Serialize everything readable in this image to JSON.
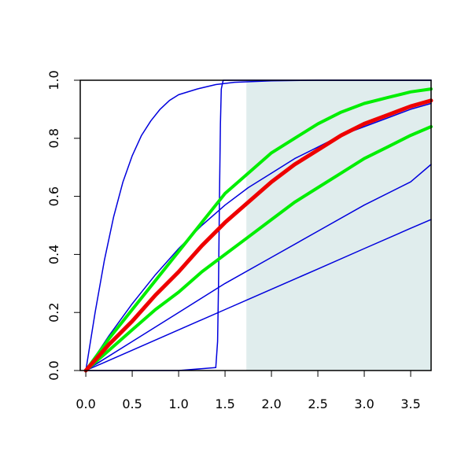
{
  "chart_data": {
    "type": "line",
    "title": "",
    "xlabel": "",
    "ylabel": "",
    "xlim": [
      -0.06,
      3.72
    ],
    "ylim": [
      0,
      1
    ],
    "grid": false,
    "x_ticks": [
      "0.0",
      "0.5",
      "1.0",
      "1.5",
      "2.0",
      "2.5",
      "3.0",
      "3.5"
    ],
    "y_ticks": [
      "0.0",
      "0.2",
      "0.4",
      "0.6",
      "0.8",
      "1.0"
    ],
    "shaded_region": {
      "x_from": 1.73,
      "x_to": 3.72,
      "color": "#e0eded"
    },
    "series": [
      {
        "color": "#0000dd",
        "width": 1.5,
        "x": [
          0,
          0.1,
          0.2,
          0.3,
          0.4,
          0.5,
          0.6,
          0.7,
          0.8,
          0.9,
          1.0,
          1.2,
          1.4,
          1.6,
          2.0,
          2.5,
          3.0,
          3.72
        ],
        "y": [
          0,
          0.2,
          0.38,
          0.53,
          0.65,
          0.74,
          0.81,
          0.86,
          0.9,
          0.93,
          0.95,
          0.97,
          0.985,
          0.993,
          0.998,
          1.0,
          1.0,
          1.0
        ]
      },
      {
        "color": "#0000dd",
        "width": 1.5,
        "x": [
          0,
          1.0,
          1.4,
          1.42,
          1.43,
          1.44,
          1.45,
          1.46,
          1.48,
          1.6,
          2.0,
          3.72
        ],
        "y": [
          0,
          0,
          0.01,
          0.1,
          0.3,
          0.6,
          0.85,
          0.97,
          1.0,
          1.0,
          1.0,
          1.0
        ]
      },
      {
        "color": "#0000dd",
        "width": 1.5,
        "x": [
          0,
          0.25,
          0.5,
          0.75,
          1.0,
          1.25,
          1.5,
          1.75,
          2.0,
          2.25,
          2.5,
          2.75,
          3.0,
          3.25,
          3.5,
          3.72
        ],
        "y": [
          0,
          0.12,
          0.23,
          0.33,
          0.42,
          0.5,
          0.57,
          0.63,
          0.68,
          0.73,
          0.77,
          0.81,
          0.84,
          0.87,
          0.9,
          0.92
        ]
      },
      {
        "color": "#0000dd",
        "width": 1.5,
        "x": [
          0,
          0.5,
          1.0,
          1.5,
          2.0,
          2.5,
          3.0,
          3.5,
          3.72
        ],
        "y": [
          0,
          0.1,
          0.2,
          0.3,
          0.39,
          0.48,
          0.57,
          0.65,
          0.71
        ]
      },
      {
        "color": "#0000dd",
        "width": 1.5,
        "x": [
          0,
          0.5,
          1.0,
          1.5,
          2.0,
          2.5,
          3.0,
          3.5,
          3.72
        ],
        "y": [
          0,
          0.07,
          0.14,
          0.21,
          0.28,
          0.35,
          0.42,
          0.49,
          0.52
        ]
      },
      {
        "color": "#00ee00",
        "width": 4,
        "x": [
          0,
          0.25,
          0.5,
          0.75,
          1.0,
          1.25,
          1.5,
          1.75,
          2.0,
          2.25,
          2.5,
          2.75,
          3.0,
          3.25,
          3.5,
          3.72
        ],
        "y": [
          0,
          0.11,
          0.21,
          0.31,
          0.41,
          0.51,
          0.61,
          0.68,
          0.75,
          0.8,
          0.85,
          0.89,
          0.92,
          0.94,
          0.96,
          0.97
        ]
      },
      {
        "color": "#00ee00",
        "width": 4,
        "x": [
          0,
          0.25,
          0.5,
          0.75,
          1.0,
          1.25,
          1.5,
          1.75,
          2.0,
          2.25,
          2.5,
          2.75,
          3.0,
          3.25,
          3.5,
          3.72
        ],
        "y": [
          0,
          0.07,
          0.14,
          0.21,
          0.27,
          0.34,
          0.4,
          0.46,
          0.52,
          0.58,
          0.63,
          0.68,
          0.73,
          0.77,
          0.81,
          0.84
        ]
      },
      {
        "color": "#ee0000",
        "width": 5,
        "x": [
          0,
          0.25,
          0.5,
          0.75,
          1.0,
          1.25,
          1.5,
          1.75,
          2.0,
          2.25,
          2.5,
          2.75,
          3.0,
          3.25,
          3.5,
          3.72
        ],
        "y": [
          0,
          0.09,
          0.17,
          0.26,
          0.34,
          0.43,
          0.51,
          0.58,
          0.65,
          0.71,
          0.76,
          0.81,
          0.85,
          0.88,
          0.91,
          0.93
        ]
      }
    ]
  }
}
